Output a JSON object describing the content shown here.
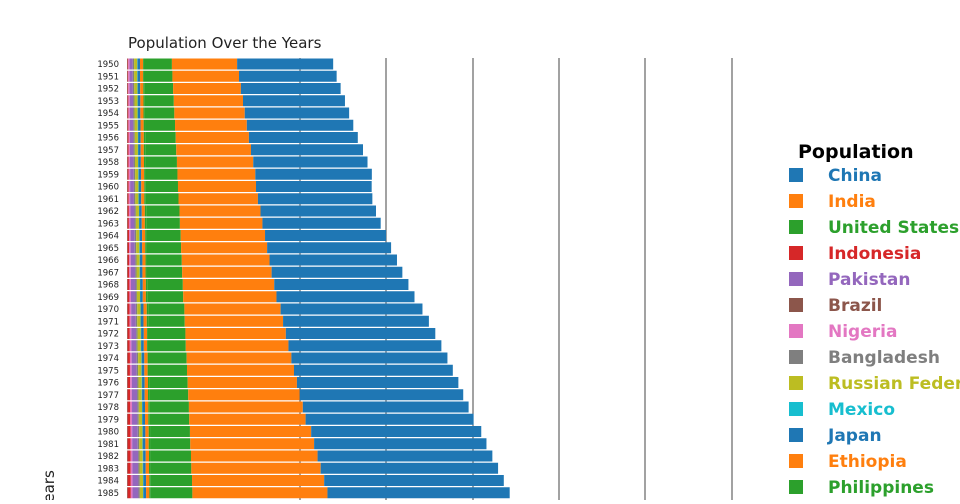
{
  "chart_data": {
    "type": "bar",
    "orientation": "horizontal",
    "stacked": true,
    "title": "Population Over the Years",
    "ylabel": "Years",
    "legend_title": "Population",
    "legend_position": "right",
    "grid": true,
    "categories": [
      "1950",
      "1951",
      "1952",
      "1953",
      "1954",
      "1955",
      "1956",
      "1957",
      "1958",
      "1959",
      "1960",
      "1961",
      "1962",
      "1963",
      "1964",
      "1965",
      "1966",
      "1967",
      "1968",
      "1969",
      "1970",
      "1971",
      "1972",
      "1973",
      "1974",
      "1975",
      "1976",
      "1977",
      "1978",
      "1979",
      "1980",
      "1981",
      "1982",
      "1983",
      "1984",
      "1985"
    ],
    "series": [
      {
        "name": "China",
        "color": "#1f77b4",
        "values": [
          554,
          563,
          575,
          588,
          602,
          614,
          628,
          646,
          659,
          672,
          667,
          660,
          666,
          682,
          698,
          715,
          735,
          754,
          774,
          796,
          818,
          841,
          862,
          882,
          900,
          916,
          931,
          943,
          956,
          969,
          981,
          994,
          1008,
          1023,
          1036,
          1051
        ]
      },
      {
        "name": "India",
        "color": "#ff7f0e",
        "values": [
          376,
          384,
          391,
          399,
          406,
          414,
          422,
          431,
          440,
          449,
          450,
          458,
          467,
          476,
          486,
          496,
          506,
          516,
          527,
          538,
          555,
          567,
          579,
          592,
          604,
          617,
          630,
          643,
          657,
          671,
          699,
          714,
          730,
          746,
          762,
          779
        ]
      },
      {
        "name": "United States",
        "color": "#2ca02c",
        "values": [
          158,
          161,
          164,
          167,
          170,
          173,
          176,
          179,
          182,
          184,
          186,
          189,
          192,
          194,
          197,
          199,
          201,
          203,
          205,
          207,
          209,
          211,
          213,
          215,
          217,
          219,
          221,
          224,
          226,
          228,
          230,
          232,
          234,
          236,
          238,
          240
        ]
      },
      {
        "name": "Indonesia",
        "color": "#d62728",
        "values": [
          3,
          3,
          3,
          4,
          4,
          4,
          5,
          5,
          5,
          6,
          6,
          6,
          7,
          7,
          8,
          8,
          9,
          9,
          10,
          10,
          11,
          11,
          12,
          12,
          13,
          13,
          14,
          14,
          15,
          15,
          16,
          16,
          17,
          17,
          18,
          18
        ]
      },
      {
        "name": "Pakistan",
        "color": "#9467bd",
        "values": [
          18,
          18,
          19,
          19,
          19,
          20,
          20,
          20,
          21,
          21,
          22,
          22,
          23,
          23,
          24,
          24,
          25,
          25,
          26,
          26,
          27,
          27,
          28,
          28,
          29,
          29,
          30,
          30,
          31,
          31,
          32,
          32,
          33,
          33,
          34,
          34
        ]
      },
      {
        "name": "Brazil",
        "color": "#8c564b",
        "values": [
          4,
          4,
          4,
          4,
          4,
          4,
          4,
          4,
          4,
          4,
          4,
          4,
          4,
          4,
          4,
          4,
          4,
          4,
          4,
          4,
          4,
          4,
          4,
          4,
          4,
          4,
          4,
          4,
          4,
          4,
          4,
          4,
          4,
          4,
          4,
          4
        ]
      },
      {
        "name": "Nigeria",
        "color": "#e377c2",
        "values": [
          8,
          8,
          8,
          8,
          8,
          8,
          8,
          8,
          8,
          8,
          8,
          8,
          9,
          9,
          9,
          9,
          9,
          9,
          9,
          9,
          9,
          9,
          9,
          9,
          10,
          10,
          10,
          10,
          10,
          10,
          10,
          10,
          10,
          10,
          10,
          10
        ]
      },
      {
        "name": "Bangladesh",
        "color": "#7f7f7f",
        "values": [
          8,
          8,
          8,
          8,
          8,
          8,
          8,
          8,
          8,
          8,
          8,
          8,
          8,
          8,
          8,
          8,
          8,
          8,
          8,
          8,
          8,
          8,
          8,
          8,
          8,
          8,
          8,
          8,
          8,
          8,
          8,
          8,
          8,
          8,
          8,
          8
        ]
      },
      {
        "name": "Russian Federation",
        "color": "#bcbd22",
        "values": [
          18,
          18,
          18,
          18,
          18,
          18,
          18,
          18,
          18,
          18,
          18,
          18,
          18,
          18,
          18,
          18,
          18,
          18,
          18,
          18,
          19,
          19,
          19,
          19,
          19,
          19,
          19,
          19,
          19,
          19,
          19,
          19,
          19,
          19,
          19,
          19
        ]
      },
      {
        "name": "Mexico",
        "color": "#17becf",
        "values": [
          2,
          2,
          2,
          2,
          2,
          2,
          2,
          2,
          2,
          2,
          2,
          2,
          2,
          2,
          2,
          2,
          2,
          2,
          2,
          2,
          2,
          2,
          2,
          2,
          2,
          2,
          2,
          2,
          2,
          2,
          2,
          2,
          2,
          2,
          2,
          2
        ]
      },
      {
        "name": "Japan",
        "color": "#1f77b4",
        "values": [
          14,
          14,
          14,
          14,
          14,
          14,
          14,
          14,
          14,
          14,
          14,
          14,
          14,
          14,
          14,
          14,
          14,
          14,
          14,
          14,
          15,
          15,
          15,
          15,
          15,
          15,
          15,
          15,
          15,
          15,
          15,
          15,
          15,
          15,
          15,
          15
        ]
      },
      {
        "name": "Ethiopia",
        "color": "#ff7f0e",
        "values": [
          18,
          18,
          18,
          18,
          18,
          18,
          18,
          18,
          18,
          18,
          18,
          18,
          18,
          18,
          18,
          18,
          18,
          18,
          18,
          18,
          19,
          19,
          19,
          19,
          19,
          19,
          19,
          19,
          19,
          19,
          19,
          19,
          19,
          19,
          19,
          19
        ]
      },
      {
        "name": "Philippines",
        "color": "#2ca02c",
        "values": [
          8,
          8,
          8,
          8,
          8,
          8,
          8,
          8,
          8,
          8,
          8,
          8,
          8,
          8,
          8,
          8,
          8,
          8,
          8,
          8,
          8,
          8,
          8,
          8,
          8,
          8,
          8,
          8,
          8,
          8,
          8,
          8,
          8,
          8,
          8,
          8
        ]
      }
    ]
  }
}
